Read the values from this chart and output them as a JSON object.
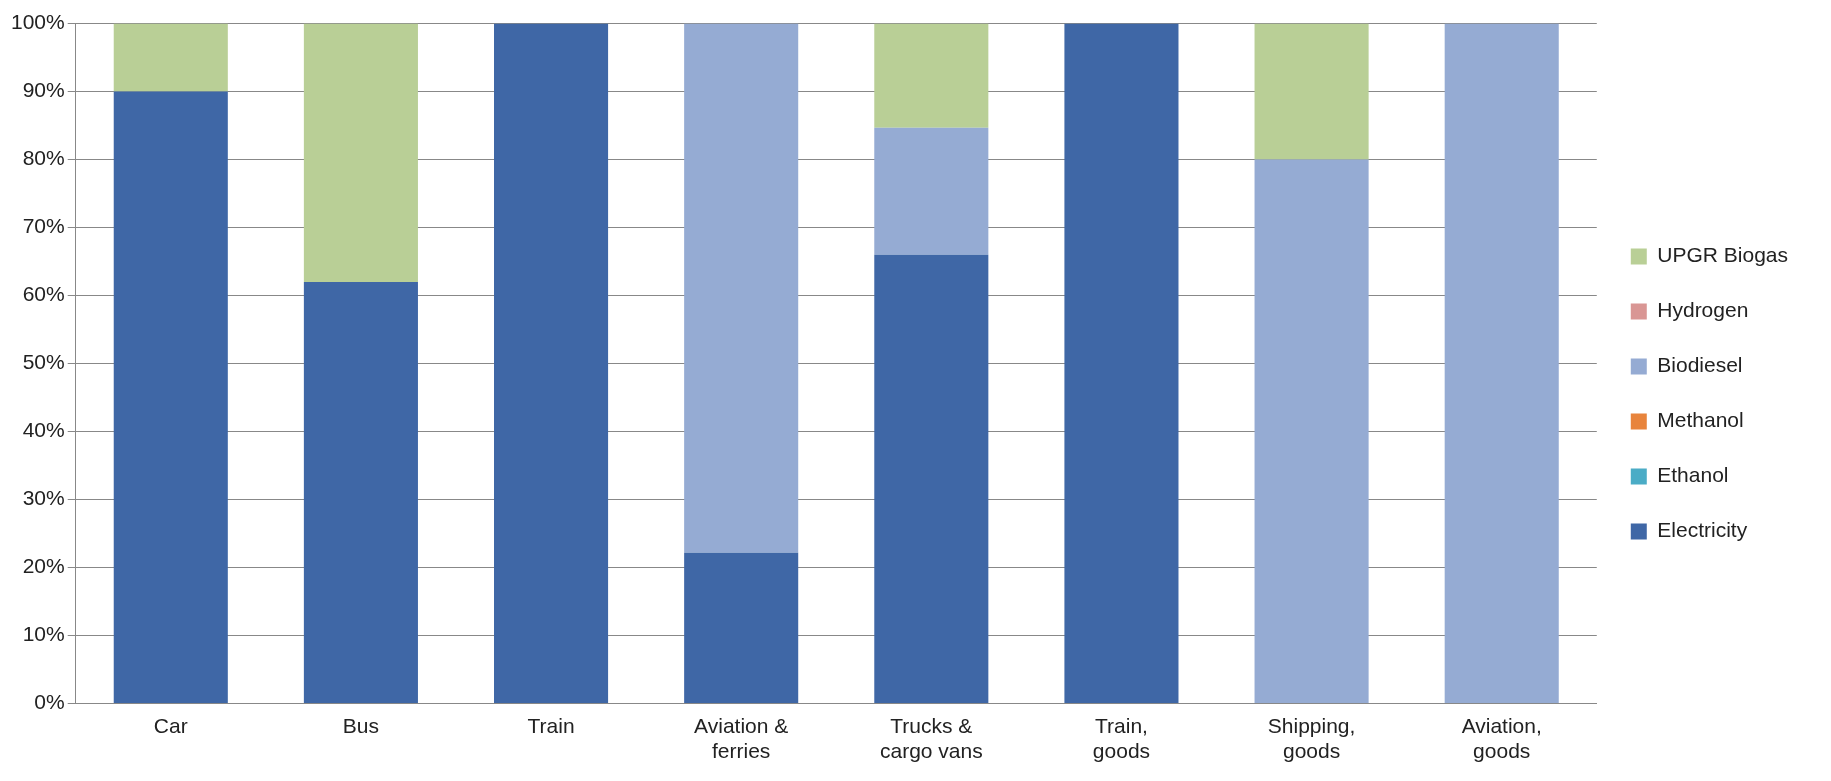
{
  "chart_data": {
    "type": "bar",
    "stacked": true,
    "categories": [
      "Car",
      "Bus",
      "Train",
      "Aviation & ferries",
      "Trucks & cargo vans",
      "Train, goods",
      "Shipping, goods",
      "Aviation, goods"
    ],
    "series": [
      {
        "name": "Electricity",
        "color": "#3f67a6",
        "values": [
          90,
          62,
          100,
          22.2,
          66,
          100,
          0,
          0
        ]
      },
      {
        "name": "Ethanol",
        "color": "#4bacc6",
        "values": [
          0,
          0,
          0,
          0,
          0,
          0,
          0,
          0
        ]
      },
      {
        "name": "Methanol",
        "color": "#e8843c",
        "values": [
          0,
          0,
          0,
          0,
          0,
          0,
          0,
          0
        ]
      },
      {
        "name": "Biodiesel",
        "color": "#95abd3",
        "values": [
          0,
          0,
          0,
          77.8,
          18.7,
          0,
          80,
          100
        ]
      },
      {
        "name": "Hydrogen",
        "color": "#d99694",
        "values": [
          0,
          0,
          0,
          0,
          0,
          0,
          0,
          0
        ]
      },
      {
        "name": "UPGR Biogas",
        "color": "#b9cf96",
        "values": [
          10,
          38,
          0,
          0,
          15.3,
          0,
          20,
          0
        ]
      }
    ],
    "ylim": [
      0,
      100
    ],
    "yticks": [
      {
        "value": 0,
        "label": "0%"
      },
      {
        "value": 10,
        "label": "10%"
      },
      {
        "value": 20,
        "label": "20%"
      },
      {
        "value": 30,
        "label": "30%"
      },
      {
        "value": 40,
        "label": "40%"
      },
      {
        "value": 50,
        "label": "50%"
      },
      {
        "value": 60,
        "label": "60%"
      },
      {
        "value": 70,
        "label": "70%"
      },
      {
        "value": 80,
        "label": "80%"
      },
      {
        "value": 90,
        "label": "90%"
      },
      {
        "value": 100,
        "label": "100%"
      }
    ],
    "grid": "y",
    "legend": "right"
  }
}
